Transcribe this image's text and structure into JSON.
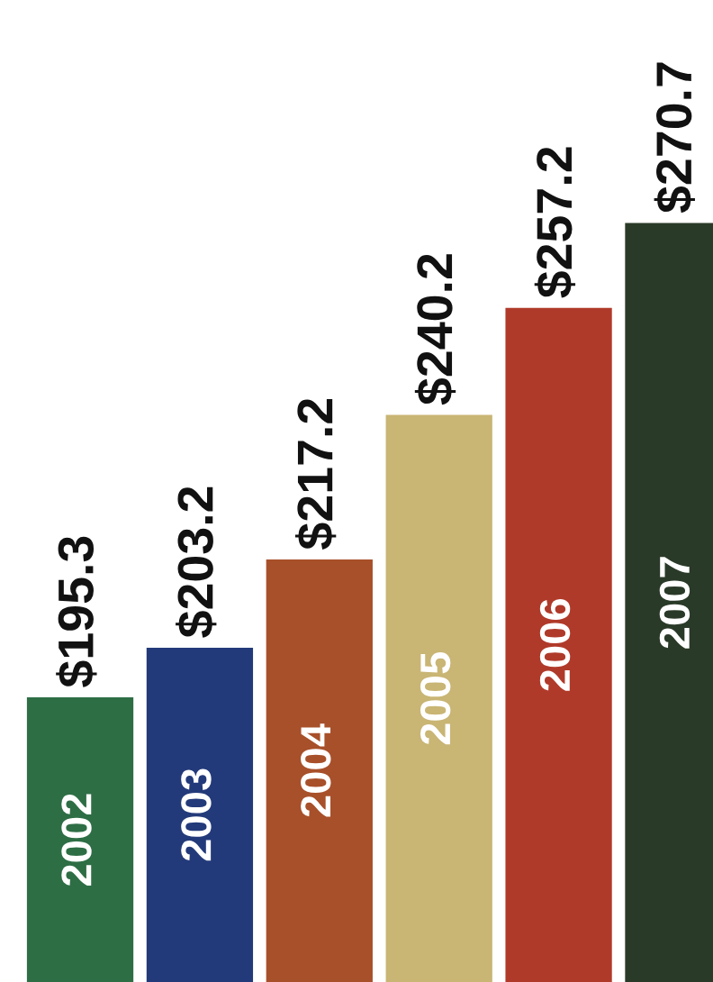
{
  "chart_data": {
    "type": "bar",
    "categories": [
      "2002",
      "2003",
      "2004",
      "2005",
      "2006",
      "2007"
    ],
    "values": [
      195.3,
      203.2,
      217.2,
      240.2,
      257.2,
      270.7
    ],
    "value_labels": [
      "$195.3",
      "$203.2",
      "$217.2",
      "$240.2",
      "$257.2",
      "$270.7"
    ],
    "colors": [
      "#2e6e45",
      "#233a7a",
      "#a8502a",
      "#c9b574",
      "#b03a2a",
      "#2a3a28"
    ]
  }
}
